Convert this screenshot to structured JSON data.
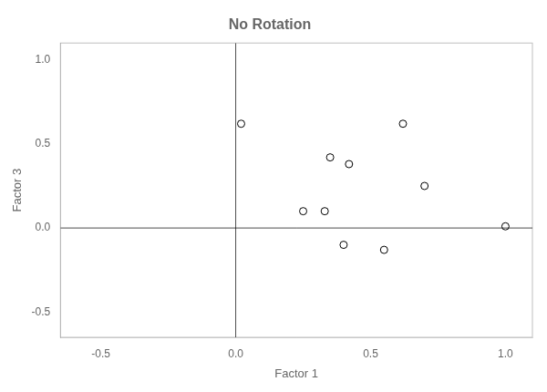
{
  "chart_data": {
    "type": "scatter",
    "title": "No Rotation",
    "xlabel": "Factor 1",
    "ylabel": "Factor 3",
    "x": [
      0.02,
      0.35,
      0.42,
      0.25,
      0.33,
      0.62,
      0.7,
      1.0,
      0.4,
      0.55
    ],
    "y": [
      0.62,
      0.42,
      0.38,
      0.1,
      0.1,
      0.62,
      0.25,
      0.01,
      -0.1,
      -0.13
    ],
    "xlim": [
      -0.65,
      1.1
    ],
    "ylim": [
      -0.65,
      1.1
    ],
    "xticks": [
      -0.5,
      {
        "value": 0,
        "label": "0.0"
      },
      0.5,
      {
        "value": 1,
        "label": "1.0"
      }
    ],
    "yticks": [
      -0.5,
      {
        "value": 0,
        "label": "0.0"
      },
      0.5,
      {
        "value": 1,
        "label": "1.0"
      }
    ],
    "axhline": 0,
    "axvline": 0,
    "color": "#000000",
    "marker": "open circle",
    "grid": false
  }
}
